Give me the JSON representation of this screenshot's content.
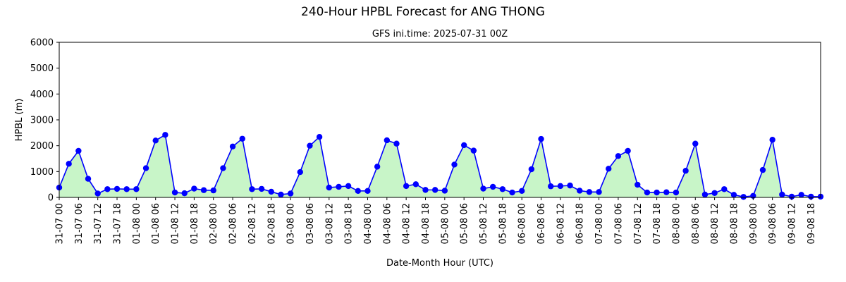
{
  "chart_data": {
    "type": "area",
    "title": "240-Hour HPBL Forecast for ANG THONG",
    "subtitle": "GFS ini.time: 2025-07-31 00Z",
    "xlabel": "Date-Month Hour (UTC)",
    "ylabel": "HPBL (m)",
    "ylim": [
      0,
      6000
    ],
    "yticks": [
      0,
      1000,
      2000,
      3000,
      4000,
      5000,
      6000
    ],
    "xtick_labels": [
      "31-07 00",
      "31-07 06",
      "31-07 12",
      "31-07 18",
      "01-08 00",
      "01-08 06",
      "01-08 12",
      "01-08 18",
      "02-08 00",
      "02-08 06",
      "02-08 12",
      "02-08 18",
      "03-08 00",
      "03-08 06",
      "03-08 12",
      "03-08 18",
      "04-08 00",
      "04-08 06",
      "04-08 12",
      "04-08 18",
      "05-08 00",
      "05-08 06",
      "05-08 12",
      "05-08 18",
      "06-08 00",
      "06-08 06",
      "06-08 12",
      "06-08 18",
      "07-08 00",
      "07-08 06",
      "07-08 12",
      "07-08 18",
      "08-08 00",
      "08-08 06",
      "08-08 12",
      "08-08 18",
      "09-08 00",
      "09-08 06",
      "09-08 12",
      "09-08 18"
    ],
    "x_step_hours": 3,
    "values": [
      380,
      1300,
      1800,
      720,
      150,
      320,
      330,
      320,
      320,
      1130,
      2200,
      2420,
      190,
      160,
      340,
      280,
      270,
      1130,
      1970,
      2270,
      320,
      330,
      220,
      110,
      150,
      980,
      2000,
      2340,
      380,
      410,
      440,
      250,
      250,
      1190,
      2210,
      2080,
      440,
      510,
      290,
      290,
      260,
      1270,
      2020,
      1810,
      340,
      410,
      320,
      190,
      250,
      1090,
      2260,
      430,
      440,
      460,
      260,
      210,
      210,
      1110,
      1600,
      1800,
      490,
      190,
      190,
      200,
      190,
      1030,
      2080,
      110,
      170,
      320,
      100,
      20,
      60,
      1060,
      2230,
      110,
      30,
      100,
      30,
      30
    ],
    "colors": {
      "line": "#0000ff",
      "marker": "#0000ff",
      "fill": "#c8f5c8"
    },
    "grid": false
  }
}
